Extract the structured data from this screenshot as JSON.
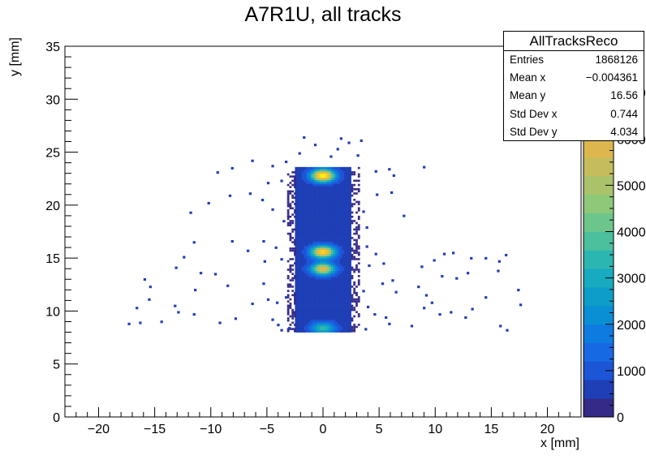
{
  "title": "A7R1U, all tracks",
  "stats": {
    "name": "AllTracksReco",
    "rows": [
      {
        "label": "Entries",
        "value": "1868126"
      },
      {
        "label": "Mean x",
        "value": "−0.004361"
      },
      {
        "label": "Mean y",
        "value": "16.56"
      },
      {
        "label": "Std Dev x",
        "value": "0.744"
      },
      {
        "label": "Std Dev y",
        "value": "4.034"
      }
    ]
  },
  "chart_data": {
    "type": "heatmap",
    "title": "A7R1U, all tracks",
    "xlabel": "x [mm]",
    "ylabel": "y [mm]",
    "xlim": [
      -23,
      23
    ],
    "ylim": [
      0,
      35
    ],
    "xticks": [
      -20,
      -15,
      -10,
      -5,
      0,
      5,
      10,
      15,
      20
    ],
    "yticks": [
      0,
      5,
      10,
      15,
      20,
      25,
      30,
      35
    ],
    "colorbar": {
      "range": [
        0,
        8000
      ],
      "ticks": [
        0,
        1000,
        2000,
        3000,
        4000,
        5000,
        6000,
        7000
      ],
      "colors": [
        "#352a87",
        "#1f3fb6",
        "#1c55d6",
        "#1768e3",
        "#0d7be0",
        "#0a8ed4",
        "#0e9dc9",
        "#17aac0",
        "#2bb6b1",
        "#4cbf9d",
        "#6cc58a",
        "#8dc979",
        "#aac36b",
        "#c5bd5c",
        "#ddb74d",
        "#efb93a",
        "#f8c72b",
        "#f9d81f",
        "#f9e714",
        "#f9f50e"
      ]
    },
    "core": {
      "x_range": [
        -2.5,
        2.5
      ],
      "y_range": [
        8,
        23.5
      ],
      "base_count": 600
    },
    "hotspots": [
      {
        "x": 0,
        "y": 22.8,
        "count": 8000
      },
      {
        "x": 0,
        "y": 15.6,
        "count": 7200
      },
      {
        "x": 0,
        "y": 14.0,
        "count": 6000
      },
      {
        "x": 0,
        "y": 8.4,
        "count": 3500
      }
    ],
    "sparse_points": [
      [
        -1.8,
        26.3
      ],
      [
        -0.8,
        25.6
      ],
      [
        1.5,
        26.2
      ],
      [
        2.2,
        25.8
      ],
      [
        3.3,
        26.0
      ],
      [
        -2.2,
        24.8
      ],
      [
        0.6,
        24.5
      ],
      [
        1.2,
        25.2
      ],
      [
        -3.4,
        24.0
      ],
      [
        3.0,
        24.6
      ],
      [
        -9.5,
        23.0
      ],
      [
        -8.2,
        23.4
      ],
      [
        -6.4,
        24.1
      ],
      [
        -4.6,
        23.6
      ],
      [
        -3.8,
        22.2
      ],
      [
        4.6,
        23.1
      ],
      [
        5.8,
        23.3
      ],
      [
        8.9,
        23.5
      ],
      [
        6.2,
        22.7
      ],
      [
        -5.0,
        22.0
      ],
      [
        -8.4,
        20.8
      ],
      [
        -10.3,
        20.1
      ],
      [
        -11.9,
        19.2
      ],
      [
        -6.6,
        21.0
      ],
      [
        -5.5,
        20.4
      ],
      [
        -4.6,
        19.5
      ],
      [
        -3.6,
        18.4
      ],
      [
        3.5,
        19.3
      ],
      [
        4.7,
        20.9
      ],
      [
        6.0,
        21.1
      ],
      [
        7.1,
        18.9
      ],
      [
        3.8,
        17.8
      ],
      [
        -11.6,
        16.4
      ],
      [
        -8.2,
        16.5
      ],
      [
        -6.8,
        15.6
      ],
      [
        -5.4,
        16.5
      ],
      [
        -4.3,
        15.9
      ],
      [
        -3.8,
        14.8
      ],
      [
        -5.3,
        14.6
      ],
      [
        3.8,
        16.0
      ],
      [
        4.6,
        15.3
      ],
      [
        5.3,
        14.4
      ],
      [
        4.0,
        14.2
      ],
      [
        -12.5,
        15.0
      ],
      [
        -13.2,
        14.0
      ],
      [
        -11.0,
        13.5
      ],
      [
        -9.7,
        13.4
      ],
      [
        -16.0,
        12.9
      ],
      [
        -15.5,
        12.2
      ],
      [
        -8.6,
        12.3
      ],
      [
        -5.4,
        12.5
      ],
      [
        -3.4,
        11.2
      ],
      [
        3.5,
        11.8
      ],
      [
        5.2,
        12.5
      ],
      [
        6.1,
        12.8
      ],
      [
        6.4,
        11.7
      ],
      [
        8.7,
        14.1
      ],
      [
        9.8,
        14.7
      ],
      [
        10.7,
        15.3
      ],
      [
        11.5,
        15.4
      ],
      [
        13.1,
        14.9
      ],
      [
        14.4,
        14.9
      ],
      [
        15.6,
        14.6
      ],
      [
        16.2,
        15.2
      ],
      [
        10.5,
        13.2
      ],
      [
        11.8,
        13.0
      ],
      [
        12.8,
        13.5
      ],
      [
        15.5,
        13.7
      ],
      [
        17.3,
        11.9
      ],
      [
        8.4,
        12.2
      ],
      [
        9.1,
        11.4
      ],
      [
        -15.6,
        11.0
      ],
      [
        -13.3,
        10.4
      ],
      [
        -11.5,
        11.9
      ],
      [
        -6.4,
        10.6
      ],
      [
        -5.0,
        11.0
      ],
      [
        -4.2,
        10.7
      ],
      [
        -13.0,
        9.8
      ],
      [
        -16.7,
        10.2
      ],
      [
        -14.5,
        8.9
      ],
      [
        -11.6,
        9.6
      ],
      [
        -9.3,
        8.8
      ],
      [
        -7.9,
        9.2
      ],
      [
        -4.6,
        9.1
      ],
      [
        -4.1,
        8.6
      ],
      [
        -3.8,
        8.1
      ],
      [
        -3.1,
        8.3
      ],
      [
        -17.4,
        8.7
      ],
      [
        -16.4,
        8.8
      ],
      [
        3.7,
        8.2
      ],
      [
        4.5,
        9.6
      ],
      [
        5.5,
        9.3
      ],
      [
        5.8,
        8.7
      ],
      [
        7.8,
        8.5
      ],
      [
        8.9,
        10.2
      ],
      [
        9.6,
        10.7
      ],
      [
        10.3,
        9.6
      ],
      [
        11.3,
        9.8
      ],
      [
        12.6,
        9.3
      ],
      [
        13.2,
        10.1
      ],
      [
        14.4,
        11.2
      ],
      [
        15.7,
        8.5
      ],
      [
        16.3,
        8.1
      ],
      [
        17.5,
        10.5
      ],
      [
        3.9,
        10.3
      ]
    ]
  }
}
